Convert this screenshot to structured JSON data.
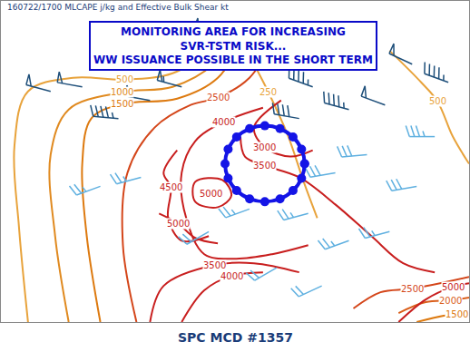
{
  "chart_data": {
    "type": "map",
    "title": "160722/1700 MLCAPE j/kg and Effective Bulk Shear kt",
    "xlim": [
      -109,
      -83.1
    ],
    "ylim": [
      32.25,
      50
    ],
    "tick_labels": false,
    "annotations": [
      "MONITORING AREA FOR INCREASING",
      "SVR-TSTM RISK...",
      "WW ISSUANCE POSSIBLE IN THE SHORT TERM"
    ],
    "caption": "SPC MCD #1357",
    "area": {
      "color": "#1414e6",
      "lon": [
        -92.2,
        -92.37,
        -92.84,
        -93.56,
        -94.4,
        -95.24,
        -95.96,
        -96.43,
        -96.6,
        -96.43,
        -95.96,
        -95.24,
        -94.4,
        -93.56,
        -92.84,
        -92.37,
        -92.2
      ],
      "lat": [
        41,
        41.8,
        42.48,
        42.94,
        43.1,
        42.94,
        42.48,
        41.8,
        41,
        40.2,
        39.52,
        39.06,
        38.9,
        39.06,
        39.52,
        40.2,
        41
      ]
    },
    "contours": [
      {
        "level": 250,
        "color": "#e8a33c",
        "lon": [
          -96.25,
          -95,
          -94.2,
          -93.1,
          -92.25,
          -91.5
        ],
        "lat": [
          48.75,
          46.5,
          44.95,
          42.5,
          40,
          38
        ],
        "labels": [
          [
            -94.2,
            44.95
          ]
        ]
      },
      {
        "level": 500,
        "color": "#e8a33c",
        "lon": [
          -107.5,
          -108,
          -108.25,
          -107.5,
          -105,
          -102.15,
          -99.5,
          -97.5,
          -96.25
        ],
        "lat": [
          32.25,
          37.5,
          42,
          45,
          45.75,
          45.65,
          46,
          47.25,
          48.5
        ],
        "labels": [
          [
            -102.15,
            45.65
          ]
        ]
      },
      {
        "level": 500,
        "color": "#e8a33c",
        "lon": [
          -87.5,
          -85.75,
          -84.85,
          -84,
          -83.1
        ],
        "lat": [
          47.25,
          45.5,
          44.45,
          42.5,
          41
        ],
        "labels": [
          [
            -84.85,
            44.45
          ]
        ]
      },
      {
        "level": 1000,
        "color": "#e08a20",
        "lon": [
          -105.25,
          -106,
          -106.25,
          -105.25,
          -102.3,
          -99.5,
          -97.25,
          -95.9
        ],
        "lat": [
          32.25,
          37,
          41.5,
          44,
          44.95,
          45.25,
          46.5,
          48.5
        ],
        "labels": [
          [
            -102.3,
            44.95
          ]
        ]
      },
      {
        "level": 1500,
        "color": "#dd7a10",
        "lon": [
          -103.5,
          -104.25,
          -104.5,
          -104,
          -102.3,
          -99.25,
          -97,
          -95.5
        ],
        "lat": [
          32.25,
          37,
          41,
          43.5,
          44.3,
          44.6,
          45.75,
          48.25
        ],
        "labels": [
          [
            -102.3,
            44.3
          ]
        ]
      },
      {
        "level": 1500,
        "color": "#dd7a10",
        "lon": [
          -86,
          -84.5,
          -83.5
        ],
        "lat": [
          32.25,
          32.6,
          32.7
        ],
        "labels": [
          [
            -83.8,
            32.7
          ]
        ]
      },
      {
        "level": 2000,
        "color": "#da5e1a",
        "lon": [
          -87,
          -85.5,
          -84.15,
          -83.1
        ],
        "lat": [
          32.75,
          33.35,
          33.45,
          33.6
        ],
        "labels": [
          [
            -84.15,
            33.45
          ]
        ]
      },
      {
        "level": 2500,
        "color": "#d4461a",
        "lon": [
          -101.5,
          -102.25,
          -102,
          -100.5,
          -98.5,
          -97,
          -95.25,
          -94
        ],
        "lat": [
          32.25,
          36.5,
          40.5,
          43,
          44.25,
          44.65,
          45.75,
          47.75
        ],
        "labels": [
          [
            -97,
            44.65
          ]
        ]
      },
      {
        "level": 2500,
        "color": "#d4461a",
        "lon": [
          -89.5,
          -88,
          -86.25,
          -83.1
        ],
        "lat": [
          33,
          33.9,
          34.1,
          34.75
        ],
        "labels": [
          [
            -86.25,
            34.1
          ]
        ]
      },
      {
        "level": 3000,
        "color": "#c81e1e",
        "lon": [
          -93.5,
          -95,
          -94.4,
          -93,
          -91.75
        ],
        "lat": [
          44.5,
          43,
          41.9,
          41.4,
          41.75
        ],
        "labels": [
          [
            -94.4,
            41.9
          ]
        ]
      },
      {
        "level": 3500,
        "color": "#c81e1e",
        "lon": [
          -95.75,
          -95.5,
          -94.4,
          -92.5,
          -90.5,
          -88.5,
          -86.75,
          -85
        ],
        "lat": [
          42.5,
          41.4,
          40.9,
          40.25,
          38.75,
          37,
          35.5,
          35
        ],
        "labels": [
          [
            -94.4,
            40.9
          ]
        ]
      },
      {
        "level": 3500,
        "color": "#c81e1e",
        "lon": [
          -100.75,
          -100,
          -97.2,
          -95,
          -92.5
        ],
        "lat": [
          32.25,
          34.25,
          35.4,
          35.5,
          35
        ],
        "labels": [
          [
            -97.2,
            35.4
          ]
        ]
      },
      {
        "level": 4000,
        "color": "#c81e1e",
        "lon": [
          -94.5,
          -96.7,
          -98.25,
          -99,
          -98.75,
          -97.75,
          -96,
          -94,
          -92
        ],
        "lat": [
          44.1,
          43.3,
          42.25,
          40.5,
          38,
          36,
          35.75,
          36,
          36.5
        ],
        "labels": [
          [
            -96.7,
            43.3
          ]
        ]
      },
      {
        "level": 4000,
        "color": "#c81e1e",
        "lon": [
          -99,
          -97.75,
          -96.25,
          -94.5
        ],
        "lat": [
          32.25,
          34,
          34.8,
          35
        ],
        "labels": [
          [
            -96.25,
            34.8
          ]
        ]
      },
      {
        "level": 4500,
        "color": "#c81e1e",
        "lon": [
          -99.25,
          -100,
          -99.6,
          -99.75,
          -99,
          -97.5
        ],
        "lat": [
          41.75,
          40.5,
          39.7,
          38,
          36.75,
          37
        ],
        "labels": [
          [
            -99.6,
            39.7
          ]
        ]
      },
      {
        "level": 5000,
        "color": "#c81e1e",
        "lon": [
          -98.25,
          -96.75,
          -96.25,
          -97,
          -98.25,
          -98.25
        ],
        "lat": [
          40,
          40.1,
          39.25,
          38.6,
          38.9,
          40
        ],
        "labels": [
          [
            -97.4,
            39.35
          ]
        ]
      },
      {
        "level": 5000,
        "color": "#c81e1e",
        "lon": [
          -100.25,
          -99.2,
          -98.25,
          -97
        ],
        "lat": [
          38.25,
          37.7,
          36.9,
          36.6
        ],
        "labels": [
          [
            -99.2,
            37.7
          ]
        ]
      },
      {
        "level": 5000,
        "color": "#c81e1e",
        "lon": [
          -87,
          -85.5,
          -84,
          -83.1
        ],
        "lat": [
          32.25,
          33.5,
          34.2,
          34.4
        ],
        "labels": [
          [
            -84,
            34.2
          ]
        ]
      }
    ],
    "barbs": [
      {
        "color": "#1e4f7a",
        "points": [
          [
            -106.25,
            45,
            285,
            50
          ],
          [
            -104.5,
            45.25,
            280,
            50
          ],
          [
            -102.5,
            43.5,
            275,
            45
          ],
          [
            -100.75,
            44.5,
            280,
            50
          ],
          [
            -99,
            45.25,
            285,
            55
          ],
          [
            -97,
            48,
            290,
            50
          ],
          [
            -93.75,
            47.25,
            295,
            50
          ],
          [
            -91.75,
            45.25,
            290,
            45
          ],
          [
            -89.75,
            44,
            285,
            45
          ],
          [
            -87.75,
            44.25,
            290,
            50
          ],
          [
            -86.25,
            46.5,
            295,
            50
          ],
          [
            -84.25,
            45.5,
            290,
            45
          ],
          [
            -92.5,
            43.5,
            280,
            40
          ]
        ]
      },
      {
        "color": "#5fb0e0",
        "points": [
          [
            -103.5,
            39.75,
            250,
            25
          ],
          [
            -101.25,
            40.25,
            255,
            25
          ],
          [
            -97.5,
            37.25,
            240,
            20
          ],
          [
            -95.25,
            38.5,
            250,
            25
          ],
          [
            -92,
            38.25,
            255,
            25
          ],
          [
            -90.5,
            40.5,
            260,
            30
          ],
          [
            -89.75,
            36.75,
            250,
            25
          ],
          [
            -87.5,
            37.25,
            255,
            25
          ],
          [
            -86,
            39.75,
            260,
            30
          ],
          [
            -93.75,
            35.25,
            240,
            20
          ],
          [
            -91.25,
            34.25,
            245,
            20
          ],
          [
            -85,
            42.5,
            270,
            35
          ],
          [
            -88.75,
            41.5,
            265,
            30
          ]
        ]
      }
    ]
  }
}
